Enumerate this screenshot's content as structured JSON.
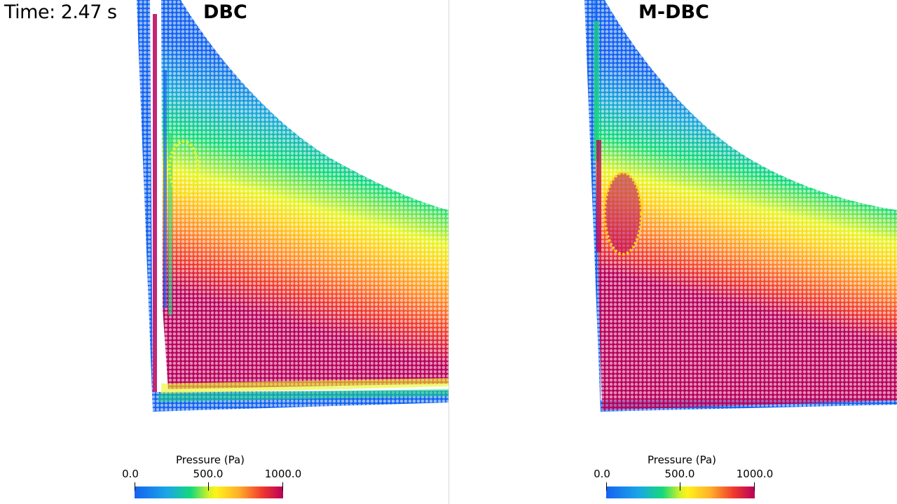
{
  "time_label": "Time: 2.47 s",
  "panels": [
    {
      "title": "DBC",
      "colorbar": {
        "title": "Pressure (Pa)",
        "ticks": [
          "0.0",
          "500.0",
          "1000.0"
        ]
      }
    },
    {
      "title": "M-DBC",
      "colorbar": {
        "title": "Pressure (Pa)",
        "ticks": [
          "0.0",
          "500.0",
          "1000.0"
        ]
      }
    }
  ],
  "colors": {
    "low": "#1463f0",
    "mid_low": "#14d97a",
    "mid": "#fff21a",
    "mid_high": "#f0382e",
    "high": "#b8005c"
  }
}
